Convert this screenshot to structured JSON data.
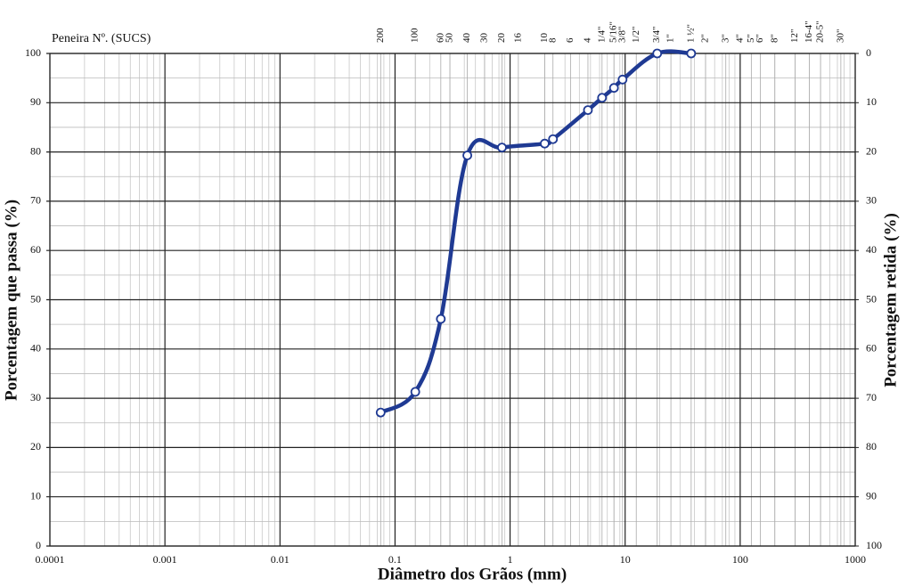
{
  "chart_data": {
    "type": "line",
    "top_axis_label": "Peneira Nº. (SUCS)",
    "xlabel": "Diâmetro dos Grãos (mm)",
    "ylabel": "Porcentagem que passa (%)",
    "y2label": "Porcentagem retida (%)",
    "xscale": "log",
    "xlim": [
      0.0001,
      1000
    ],
    "xticks": [
      0.0001,
      0.001,
      0.01,
      0.1,
      1,
      10,
      100,
      1000
    ],
    "ylim": [
      0,
      100
    ],
    "yticks": [
      0,
      10,
      20,
      30,
      40,
      50,
      60,
      70,
      80,
      90,
      100
    ],
    "y2lim": [
      100,
      0
    ],
    "y2ticks": [
      0,
      10,
      20,
      30,
      40,
      50,
      60,
      70,
      80,
      90,
      100
    ],
    "grid": true,
    "sieves": [
      {
        "label": "200",
        "size": 0.075
      },
      {
        "label": "100",
        "size": 0.15
      },
      {
        "label": "60",
        "size": 0.25
      },
      {
        "label": "50",
        "size": 0.3
      },
      {
        "label": "40",
        "size": 0.425
      },
      {
        "label": "30",
        "size": 0.6
      },
      {
        "label": "20",
        "size": 0.85
      },
      {
        "label": "16",
        "size": 1.18
      },
      {
        "label": "10",
        "size": 2.0
      },
      {
        "label": "8",
        "size": 2.36
      },
      {
        "label": "6",
        "size": 3.35
      },
      {
        "label": "4",
        "size": 4.75
      },
      {
        "label": "1/4\"",
        "size": 6.3
      },
      {
        "label": "5/16\"",
        "size": 8.0
      },
      {
        "label": "3/8\"",
        "size": 9.5
      },
      {
        "label": "1/2\"",
        "size": 12.5
      },
      {
        "label": "3/4\"",
        "size": 19
      },
      {
        "label": "1\"",
        "size": 25
      },
      {
        "label": "1 ½\"",
        "size": 37.5
      },
      {
        "label": "2\"",
        "size": 50
      },
      {
        "label": "3\"",
        "size": 75
      },
      {
        "label": "4\"",
        "size": 100
      },
      {
        "label": "5\"",
        "size": 125
      },
      {
        "label": "6\"",
        "size": 150
      },
      {
        "label": "8\"",
        "size": 200
      },
      {
        "label": "12\"",
        "size": 300
      },
      {
        "label": "16-4\"",
        "size": 400
      },
      {
        "label": "20-5\"",
        "size": 500
      },
      {
        "label": "30\"",
        "size": 750
      }
    ],
    "x": [
      0.075,
      0.15,
      0.25,
      0.425,
      0.85,
      2.0,
      2.36,
      4.75,
      6.3,
      8.0,
      9.5,
      19,
      37.5
    ],
    "values": [
      27.1,
      31.3,
      46.1,
      79.3,
      80.9,
      81.7,
      82.6,
      88.5,
      91.0,
      93.0,
      94.7,
      100,
      100
    ],
    "color": "#1f3a93"
  }
}
